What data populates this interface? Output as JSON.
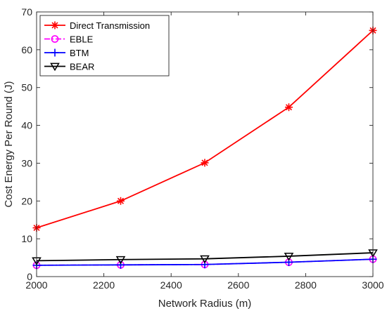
{
  "chart_data": {
    "type": "line",
    "x": [
      2000,
      2250,
      2500,
      2750,
      3000
    ],
    "series": [
      {
        "name": "Direct Transmission",
        "values": [
          12.9,
          20.0,
          30.1,
          44.8,
          65.1
        ],
        "color": "#ff0000",
        "marker": "asterisk",
        "line_style": "solid"
      },
      {
        "name": "EBLE",
        "values": [
          3.0,
          3.1,
          3.2,
          3.8,
          4.6
        ],
        "color": "#ff00ff",
        "marker": "circle",
        "line_style": "dash-dot"
      },
      {
        "name": "BTM",
        "values": [
          3.0,
          3.1,
          3.2,
          3.8,
          4.6
        ],
        "color": "#0000ff",
        "marker": "plus",
        "line_style": "solid"
      },
      {
        "name": "BEAR",
        "values": [
          4.2,
          4.5,
          4.7,
          5.4,
          6.3
        ],
        "color": "#000000",
        "marker": "triangle-down",
        "line_style": "solid"
      }
    ],
    "xlabel": "Network Radius (m)",
    "ylabel": "Cost Energy Per Round (J)",
    "xlim": [
      2000,
      3000
    ],
    "ylim": [
      0,
      70
    ],
    "xticks": [
      2000,
      2200,
      2400,
      2600,
      2800,
      3000
    ],
    "yticks": [
      0,
      10,
      20,
      30,
      40,
      50,
      60,
      70
    ],
    "grid": false,
    "legend_position": "top-left"
  }
}
